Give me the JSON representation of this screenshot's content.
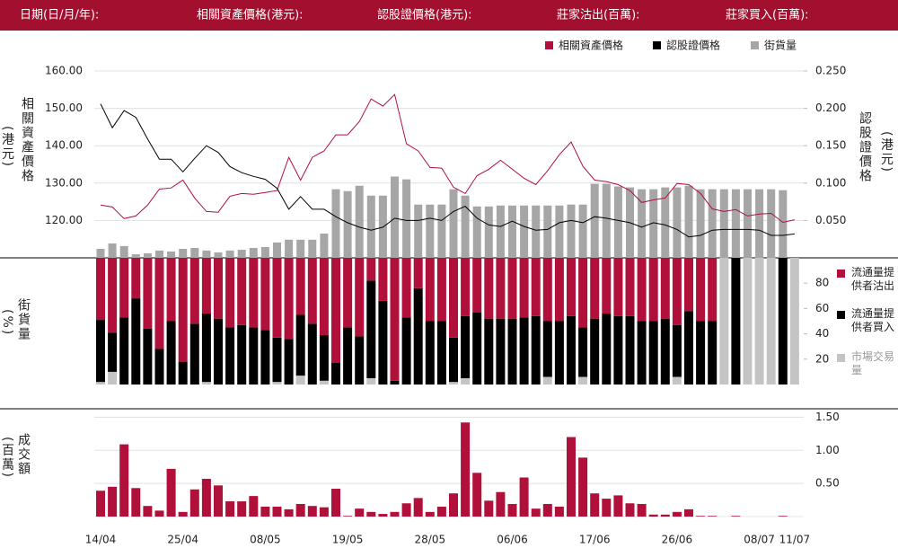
{
  "header": {
    "labels": [
      "日期(日/月/年):",
      "相關資產價格(港元):",
      "認股證價格(港元):",
      "莊家沽出(百萬):",
      "莊家買入(百萬):"
    ]
  },
  "chart_data": [
    {
      "type": "combo",
      "ylabel": "相關資產價格",
      "ylabel_unit": "(港元)",
      "y2label": "認股證價格",
      "y2label_unit": "(港元)",
      "ylim": [
        110,
        160
      ],
      "yticks": [
        {
          "value": 120,
          "label": "120.00"
        },
        {
          "value": 130,
          "label": "130.00"
        },
        {
          "value": 140,
          "label": "140.00"
        },
        {
          "value": 150,
          "label": "150.00"
        },
        {
          "value": 160,
          "label": "160.00"
        }
      ],
      "y2lim": [
        0,
        0.25
      ],
      "y2ticks": [
        {
          "value": 0.05,
          "label": "0.050"
        },
        {
          "value": 0.1,
          "label": "0.100"
        },
        {
          "value": 0.15,
          "label": "0.150"
        },
        {
          "value": 0.2,
          "label": "0.200"
        },
        {
          "value": 0.25,
          "label": "0.250"
        }
      ],
      "y3lim": [
        0,
        100
      ],
      "grid": true,
      "legend": "top-right",
      "series": [
        {
          "name": "相關資產價格",
          "type": "line",
          "color": "#b0103a",
          "values": [
            124.1,
            123.6,
            120.5,
            121.2,
            124.1,
            128.4,
            128.7,
            130.8,
            126.0,
            122.4,
            122.2,
            126.5,
            127.2,
            127.0,
            127.5,
            128.0,
            136.9,
            130.8,
            136.9,
            138.6,
            142.9,
            142.9,
            146.5,
            152.5,
            150.6,
            153.7,
            140.5,
            138.6,
            134.2,
            134.0,
            128.9,
            127.2,
            132.0,
            133.7,
            136.1,
            133.7,
            131.3,
            129.6,
            133.3,
            137.6,
            141.0,
            134.5,
            130.8,
            130.4,
            129.6,
            128.0,
            124.8,
            125.5,
            126.0,
            129.9,
            129.6,
            127.2,
            123.1,
            122.4,
            122.9,
            121.2,
            121.7,
            121.9,
            119.5,
            120.2
          ]
        },
        {
          "name": "認股證價格",
          "type": "line",
          "axis": "y2",
          "color": "#000000",
          "values": [
            0.206,
            0.174,
            0.197,
            0.188,
            0.159,
            0.132,
            0.132,
            0.115,
            0.133,
            0.15,
            0.141,
            0.122,
            0.114,
            0.109,
            0.105,
            0.093,
            0.065,
            0.082,
            0.065,
            0.065,
            0.055,
            0.047,
            0.041,
            0.037,
            0.041,
            0.053,
            0.05,
            0.05,
            0.053,
            0.05,
            0.062,
            0.069,
            0.053,
            0.044,
            0.042,
            0.049,
            0.042,
            0.037,
            0.038,
            0.047,
            0.05,
            0.047,
            0.055,
            0.053,
            0.05,
            0.047,
            0.041,
            0.047,
            0.044,
            0.038,
            0.028,
            0.03,
            0.037,
            0.038,
            0.038,
            0.038,
            0.037,
            0.03,
            0.03,
            0.032
          ]
        },
        {
          "name": "街貨量",
          "type": "bar",
          "axis": "y3",
          "color": "#a6a6a6",
          "values": [
            4.8,
            7.7,
            6.3,
            1.9,
            2.4,
            3.9,
            3.4,
            4.8,
            5.3,
            3.9,
            2.9,
            3.9,
            4.3,
            5.3,
            5.8,
            8.2,
            9.7,
            9.7,
            9.7,
            13.0,
            36.7,
            35.7,
            38.6,
            33.3,
            33.3,
            43.5,
            42.0,
            28.5,
            28.5,
            28.5,
            36.7,
            33.3,
            27.5,
            27.5,
            28.0,
            28.0,
            28.0,
            28.0,
            28.0,
            28.0,
            28.5,
            28.5,
            39.6,
            39.6,
            38.2,
            37.7,
            36.7,
            36.7,
            37.7,
            37.7,
            38.6,
            36.7,
            36.7,
            36.7,
            36.7,
            36.7,
            36.7,
            36.7,
            36.2,
            null
          ]
        }
      ]
    },
    {
      "type": "stacked_bar",
      "ylabel": "街貨量",
      "ylabel_unit": "(%)",
      "ylim": [
        0,
        100
      ],
      "yticks": [
        20,
        40,
        60,
        80
      ],
      "legend": "right",
      "series": [
        {
          "name": "流通量提供者沽出",
          "color": "#b0103a",
          "values": [
            49,
            59,
            47,
            32,
            56,
            72,
            50,
            82,
            52,
            44,
            48,
            55,
            53,
            55,
            57,
            63,
            64,
            45,
            52,
            61,
            83,
            55,
            62,
            18,
            34,
            97,
            47,
            24,
            50,
            50,
            63,
            46,
            43,
            48,
            48,
            48,
            47,
            46,
            50,
            50,
            46,
            55,
            48,
            44,
            46,
            46,
            50,
            50,
            48,
            53,
            42,
            50,
            50,
            0,
            0,
            0,
            0,
            0,
            0,
            0
          ]
        },
        {
          "name": "流通量提供者買入",
          "color": "#000000",
          "values": [
            49,
            31,
            53,
            68,
            44,
            28,
            50,
            18,
            48,
            54,
            52,
            45,
            47,
            45,
            43,
            35,
            36,
            48,
            48,
            36,
            17,
            45,
            38,
            77,
            66,
            3,
            53,
            76,
            50,
            50,
            35,
            49,
            57,
            52,
            52,
            52,
            53,
            54,
            44,
            50,
            54,
            39,
            52,
            56,
            54,
            54,
            50,
            50,
            52,
            41,
            58,
            50,
            50,
            0,
            100,
            0,
            0,
            0,
            100,
            0
          ]
        },
        {
          "name": "市場交易量",
          "color": "#c4c4c4",
          "values": [
            2,
            10,
            0,
            0,
            0,
            0,
            0,
            0,
            0,
            2,
            0,
            0,
            0,
            0,
            0,
            2,
            0,
            7,
            0,
            3,
            0,
            0,
            0,
            5,
            0,
            0,
            0,
            0,
            0,
            0,
            2,
            5,
            0,
            0,
            0,
            0,
            0,
            0,
            6,
            0,
            0,
            6,
            0,
            0,
            0,
            0,
            0,
            0,
            0,
            6,
            0,
            0,
            0,
            100,
            0,
            100,
            100,
            100,
            0,
            100
          ]
        }
      ]
    },
    {
      "type": "bar",
      "ylabel": "成交額",
      "ylabel_unit": "(百萬)",
      "ylim": [
        0,
        1.6
      ],
      "yticks": [
        {
          "value": 0.5,
          "label": "0.50"
        },
        {
          "value": 1,
          "label": "1.00"
        },
        {
          "value": 1.5,
          "label": "1.50"
        }
      ],
      "grid": true,
      "color": "#b0103a",
      "categories": [
        "14/04",
        null,
        null,
        null,
        null,
        null,
        null,
        "25/04",
        null,
        null,
        null,
        null,
        null,
        null,
        "08/05",
        null,
        null,
        null,
        null,
        null,
        null,
        "19/05",
        null,
        null,
        null,
        null,
        null,
        null,
        "28/05",
        null,
        null,
        null,
        null,
        null,
        null,
        "06/06",
        null,
        null,
        null,
        null,
        null,
        null,
        "17/06",
        null,
        null,
        null,
        null,
        null,
        null,
        "26/06",
        null,
        null,
        null,
        null,
        null,
        null,
        "08/07",
        null,
        null,
        "11/07"
      ],
      "values": [
        0.39,
        0.45,
        1.09,
        0.43,
        0.16,
        0.09,
        0.72,
        0.07,
        0.41,
        0.57,
        0.47,
        0.23,
        0.23,
        0.31,
        0.15,
        0.15,
        0.11,
        0.19,
        0.16,
        0.14,
        0.42,
        0.01,
        0.12,
        0.07,
        0.04,
        0.07,
        0.2,
        0.28,
        0.07,
        0.15,
        0.35,
        1.42,
        0.66,
        0.24,
        0.37,
        0.19,
        0.59,
        0.12,
        0.19,
        0.15,
        1.2,
        0.89,
        0.35,
        0.27,
        0.32,
        0.2,
        0.19,
        0.03,
        0.03,
        0.07,
        0.11,
        0.01,
        0.01,
        0,
        0.01,
        0,
        0,
        0,
        0.01,
        0
      ]
    }
  ]
}
